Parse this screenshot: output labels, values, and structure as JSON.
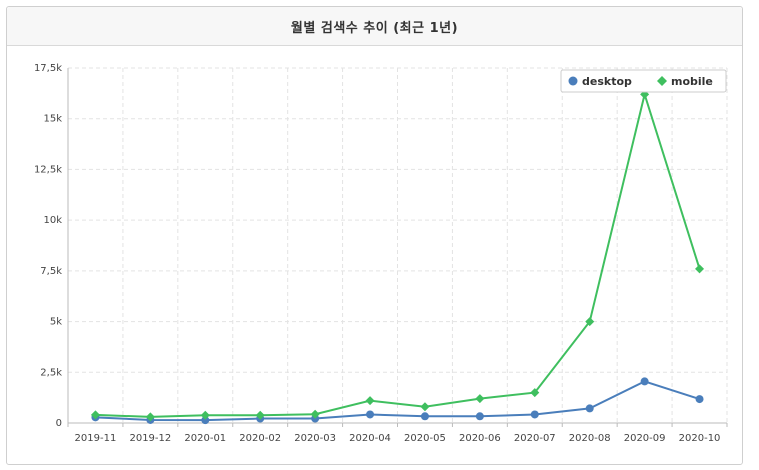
{
  "header": {
    "title": "월별 검색수 추이 (최근 1년)"
  },
  "chart_data": {
    "type": "line",
    "title": "월별 검색수 추이 (최근 1년)",
    "categories": [
      "2019-11",
      "2019-12",
      "2020-01",
      "2020-02",
      "2020-03",
      "2020-04",
      "2020-05",
      "2020-06",
      "2020-07",
      "2020-08",
      "2020-09",
      "2020-10"
    ],
    "yticks": [
      0,
      2500,
      5000,
      7500,
      10000,
      12500,
      15000,
      17500
    ],
    "ytick_labels": [
      "0",
      "2,5k",
      "5k",
      "7,5k",
      "10k",
      "12,5k",
      "15k",
      "17,5k"
    ],
    "ylim": [
      0,
      17500
    ],
    "grid": true,
    "legend_position": "top-right",
    "series": [
      {
        "name": "desktop",
        "color": "#4a7ebb",
        "marker": "circle",
        "values": [
          280,
          150,
          140,
          220,
          220,
          420,
          330,
          330,
          420,
          720,
          2050,
          1180
        ]
      },
      {
        "name": "mobile",
        "color": "#3fbf5f",
        "marker": "diamond",
        "values": [
          400,
          300,
          380,
          380,
          430,
          1100,
          800,
          1200,
          1500,
          5000,
          16200,
          7600
        ]
      }
    ]
  }
}
